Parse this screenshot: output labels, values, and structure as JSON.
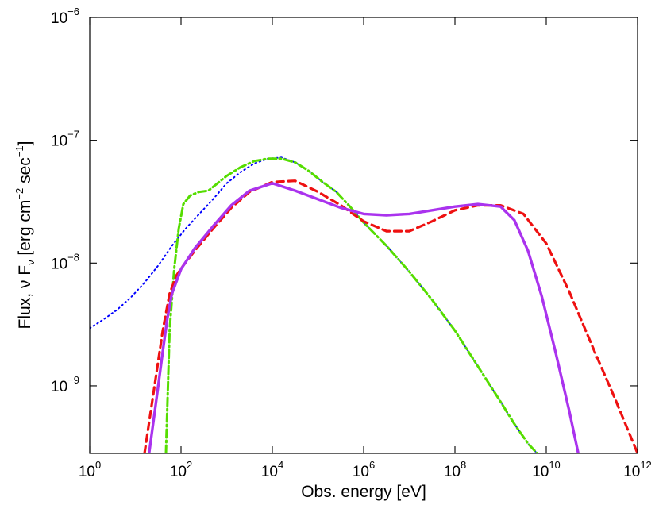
{
  "chart_data": {
    "type": "line",
    "title": "",
    "xlabel": "Obs. energy [eV]",
    "ylabel": {
      "prefix": "Flux, ",
      "nu": "ν",
      "F": " F",
      "sub": "ν",
      "unit_open": " [erg cm",
      "unit_exp1": "−2",
      "unit_mid": " sec",
      "unit_exp2": "−1",
      "unit_close": "]"
    },
    "xscale": "log",
    "yscale": "log",
    "xlim_exp": [
      0,
      12
    ],
    "ylim_exp": [
      -9.55,
      -6
    ],
    "x_ticks": [
      {
        "base": "10",
        "exp": "0",
        "value": 0
      },
      {
        "base": "10",
        "exp": "2",
        "value": 2
      },
      {
        "base": "10",
        "exp": "4",
        "value": 4
      },
      {
        "base": "10",
        "exp": "6",
        "value": 6
      },
      {
        "base": "10",
        "exp": "8",
        "value": 8
      },
      {
        "base": "10",
        "exp": "10",
        "value": 10
      },
      {
        "base": "10",
        "exp": "12",
        "value": 12
      }
    ],
    "y_ticks": [
      {
        "base": "10",
        "exp": "−9",
        "value": -9
      },
      {
        "base": "10",
        "exp": "−8",
        "value": -8
      },
      {
        "base": "10",
        "exp": "−7",
        "value": -7
      },
      {
        "base": "10",
        "exp": "−6",
        "value": -6
      }
    ],
    "series": [
      {
        "name": "blue-dotted",
        "color": "#0000ff",
        "style": "dotted",
        "log_x": [
          0,
          0.3,
          0.6,
          0.9,
          1.2,
          1.5,
          1.8,
          2.1,
          2.4,
          2.7,
          3,
          3.3,
          3.6,
          3.9,
          4.2,
          4.5,
          4.8,
          5.1,
          5.4,
          5.7,
          6,
          6.5,
          7,
          7.5,
          8,
          8.5,
          9,
          9.3,
          9.6,
          9.8
        ],
        "log_y": [
          -8.53,
          -8.46,
          -8.38,
          -8.28,
          -8.16,
          -8.02,
          -7.86,
          -7.72,
          -7.6,
          -7.48,
          -7.35,
          -7.26,
          -7.19,
          -7.15,
          -7.14,
          -7.18,
          -7.25,
          -7.34,
          -7.42,
          -7.54,
          -7.67,
          -7.86,
          -8.07,
          -8.3,
          -8.55,
          -8.84,
          -9.13,
          -9.31,
          -9.47,
          -9.55
        ]
      },
      {
        "name": "green-dashdot",
        "color": "#55dd00",
        "style": "dashdot",
        "log_x": [
          1.67,
          1.75,
          1.85,
          1.95,
          2.05,
          2.2,
          2.4,
          2.6,
          2.8,
          3,
          3.3,
          3.6,
          3.9,
          4.2,
          4.5,
          4.8,
          5.1,
          5.4,
          5.7,
          6,
          6.5,
          7,
          7.5,
          8,
          8.5,
          9,
          9.3,
          9.6,
          9.8
        ],
        "log_y": [
          -9.55,
          -8.55,
          -8.05,
          -7.72,
          -7.52,
          -7.45,
          -7.42,
          -7.41,
          -7.35,
          -7.29,
          -7.22,
          -7.17,
          -7.15,
          -7.15,
          -7.18,
          -7.25,
          -7.34,
          -7.42,
          -7.54,
          -7.67,
          -7.86,
          -8.07,
          -8.3,
          -8.55,
          -8.84,
          -9.13,
          -9.31,
          -9.47,
          -9.55
        ]
      },
      {
        "name": "red-dashed",
        "color": "#ee1111",
        "style": "dashed",
        "log_x": [
          1.2,
          1.4,
          1.6,
          1.75,
          1.9,
          2.05,
          2.3,
          2.7,
          3.1,
          3.5,
          4,
          4.5,
          5,
          5.5,
          6,
          6.5,
          7,
          7.5,
          8,
          8.5,
          9,
          9.5,
          10,
          10.5,
          11,
          11.5,
          12
        ],
        "log_y": [
          -9.55,
          -9.05,
          -8.55,
          -8.25,
          -8.1,
          -8.02,
          -7.9,
          -7.72,
          -7.55,
          -7.42,
          -7.34,
          -7.33,
          -7.42,
          -7.53,
          -7.66,
          -7.74,
          -7.74,
          -7.66,
          -7.57,
          -7.53,
          -7.53,
          -7.6,
          -7.84,
          -8.23,
          -8.67,
          -9.1,
          -9.55
        ]
      },
      {
        "name": "purple-solid",
        "color": "#aa33ee",
        "style": "solid",
        "log_x": [
          1.3,
          1.5,
          1.6,
          1.7,
          1.8,
          2,
          2.3,
          2.7,
          3.1,
          3.5,
          4,
          4.5,
          5,
          5.5,
          6,
          6.5,
          7,
          7.5,
          8,
          8.5,
          9,
          9.3,
          9.6,
          9.9,
          10.2,
          10.5,
          10.7
        ],
        "log_y": [
          -9.55,
          -9,
          -8.72,
          -8.45,
          -8.25,
          -8.05,
          -7.88,
          -7.7,
          -7.53,
          -7.41,
          -7.35,
          -7.41,
          -7.48,
          -7.55,
          -7.6,
          -7.61,
          -7.6,
          -7.57,
          -7.54,
          -7.52,
          -7.54,
          -7.65,
          -7.9,
          -8.27,
          -8.72,
          -9.2,
          -9.55
        ]
      }
    ]
  }
}
